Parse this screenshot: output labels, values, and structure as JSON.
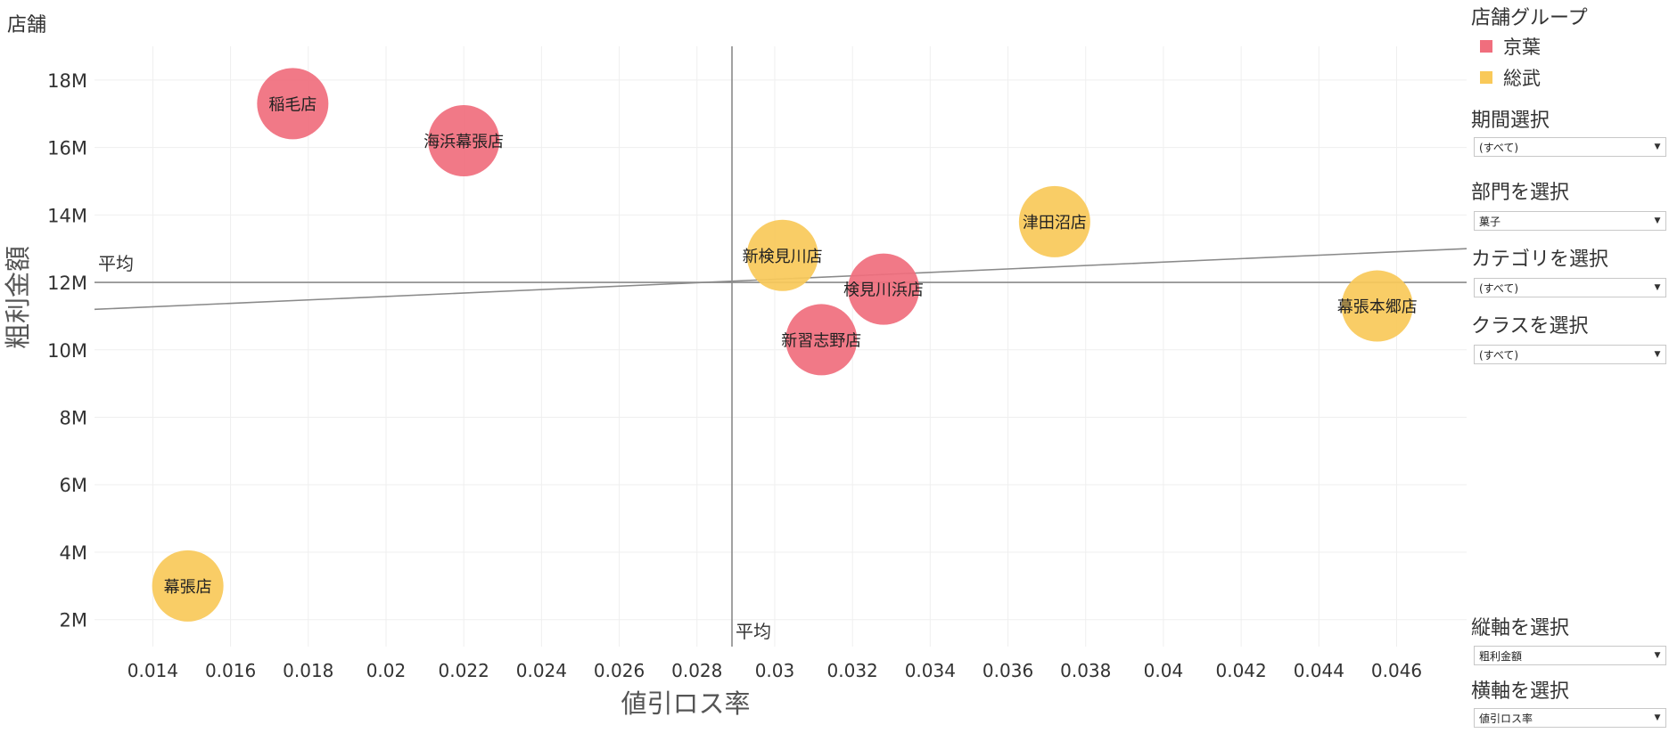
{
  "chart_data": {
    "type": "scatter",
    "title": "店舗",
    "xlabel": "値引ロス率",
    "ylabel": "粗利金額",
    "xlim": [
      0.0125,
      0.0478
    ],
    "ylim": [
      1200000,
      19000000
    ],
    "x_ticks": [
      0.014,
      0.016,
      0.018,
      0.02,
      0.022,
      0.024,
      0.026,
      0.028,
      0.03,
      0.032,
      0.034,
      0.036,
      0.038,
      0.04,
      0.042,
      0.044,
      0.046
    ],
    "x_tick_labels": [
      "0.014",
      "0.016",
      "0.018",
      "0.02",
      "0.022",
      "0.024",
      "0.026",
      "0.028",
      "0.03",
      "0.032",
      "0.034",
      "0.036",
      "0.038",
      "0.04",
      "0.042",
      "0.044",
      "0.046"
    ],
    "y_ticks": [
      2000000,
      4000000,
      6000000,
      8000000,
      10000000,
      12000000,
      14000000,
      16000000,
      18000000
    ],
    "y_tick_labels": [
      "2M",
      "4M",
      "6M",
      "8M",
      "10M",
      "12M",
      "14M",
      "16M",
      "18M"
    ],
    "grid": true,
    "reference_lines": {
      "x_average": 0.0289,
      "y_average": 12000000,
      "x_average_label": "平均",
      "y_average_label": "平均"
    },
    "trend_line": {
      "x": [
        0.0125,
        0.0478
      ],
      "y": [
        11200000,
        13000000
      ]
    },
    "series": [
      {
        "name": "京葉",
        "color": "#f06e7d",
        "points": [
          {
            "label": "稲毛店",
            "x": 0.0176,
            "y": 17300000
          },
          {
            "label": "海浜幕張店",
            "x": 0.022,
            "y": 16200000
          },
          {
            "label": "検見川浜店",
            "x": 0.0328,
            "y": 11800000
          },
          {
            "label": "新習志野店",
            "x": 0.0312,
            "y": 10300000
          }
        ]
      },
      {
        "name": "総武",
        "color": "#f9c959",
        "points": [
          {
            "label": "新検見川店",
            "x": 0.0302,
            "y": 12800000
          },
          {
            "label": "津田沼店",
            "x": 0.0372,
            "y": 13800000
          },
          {
            "label": "幕張本郷店",
            "x": 0.0455,
            "y": 11300000
          },
          {
            "label": "幕張店",
            "x": 0.0149,
            "y": 3000000
          }
        ]
      }
    ]
  },
  "legend": {
    "title": "店舗グループ",
    "items": [
      {
        "label": "京葉",
        "color": "#f06e7d"
      },
      {
        "label": "総武",
        "color": "#f9c959"
      }
    ]
  },
  "filters": [
    {
      "label": "期間選択",
      "value": "(すべて)"
    },
    {
      "label": "部門を選択",
      "value": "菓子"
    },
    {
      "label": "カテゴリを選択",
      "value": "(すべて)"
    },
    {
      "label": "クラスを選択",
      "value": "(すべて)"
    },
    {
      "label": "縦軸を選択",
      "value": "粗利金額"
    },
    {
      "label": "横軸を選択",
      "value": "値引ロス率"
    }
  ],
  "dropdown_icon": "caret-down-icon"
}
